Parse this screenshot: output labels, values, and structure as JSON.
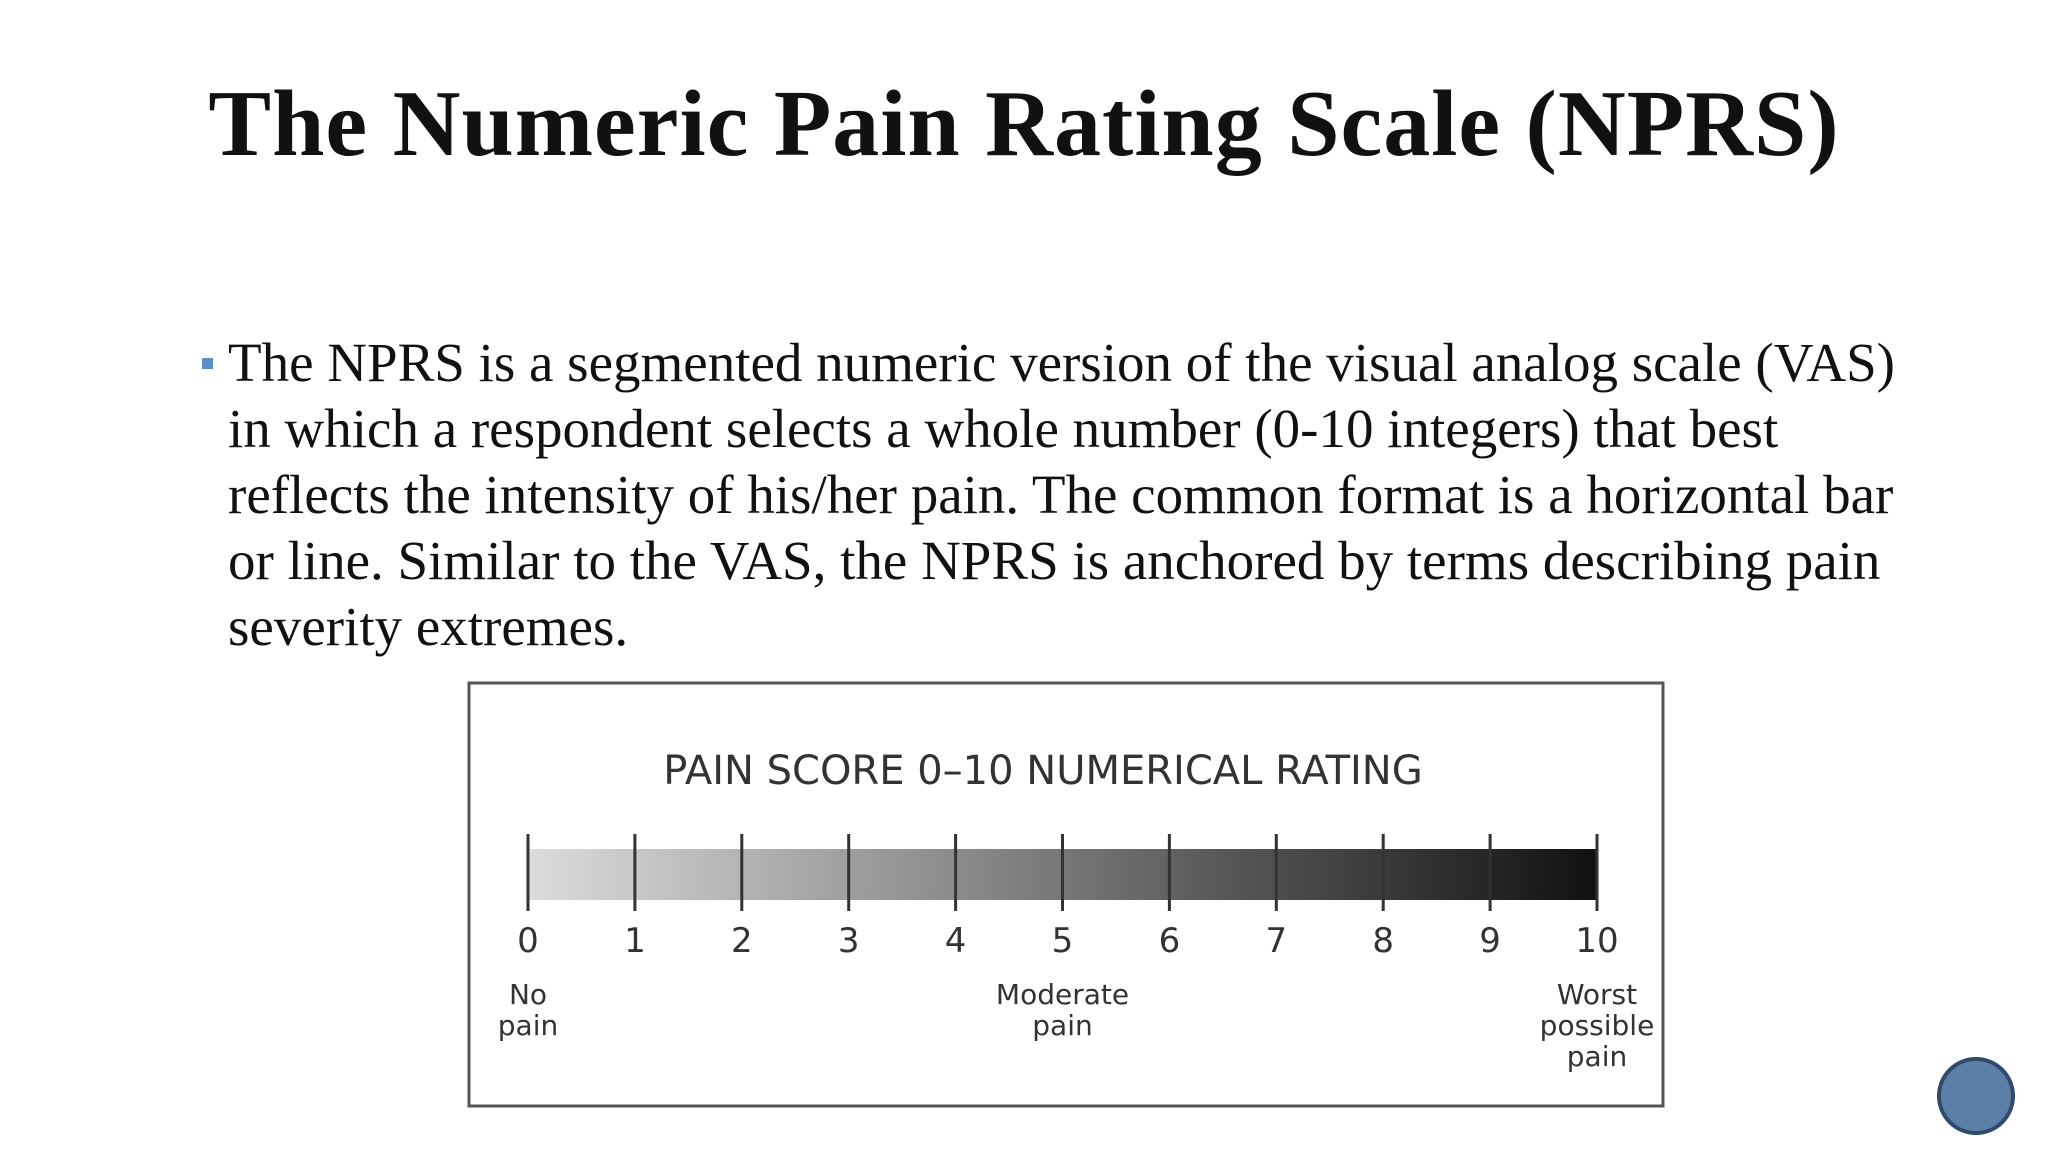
{
  "title": "The Numeric Pain Rating Scale (NPRS)",
  "bullets": [
    "The NPRS is a segmented numeric version of the visual analog scale (VAS) in which a respondent selects a whole number (0-10 integers) that best reflects the intensity of his/her pain. The common format is a horizontal bar or line. Similar to the VAS, the NPRS is anchored by terms describing pain severity extremes."
  ],
  "figure": {
    "title": "PAIN SCORE 0–10 NUMERICAL RATING",
    "scale": [
      0,
      1,
      2,
      3,
      4,
      5,
      6,
      7,
      8,
      9,
      10
    ],
    "anchors": [
      [
        "No",
        "pain"
      ],
      [
        "Moderate",
        "pain"
      ],
      [
        "Worst",
        "possible",
        "pain"
      ]
    ]
  }
}
